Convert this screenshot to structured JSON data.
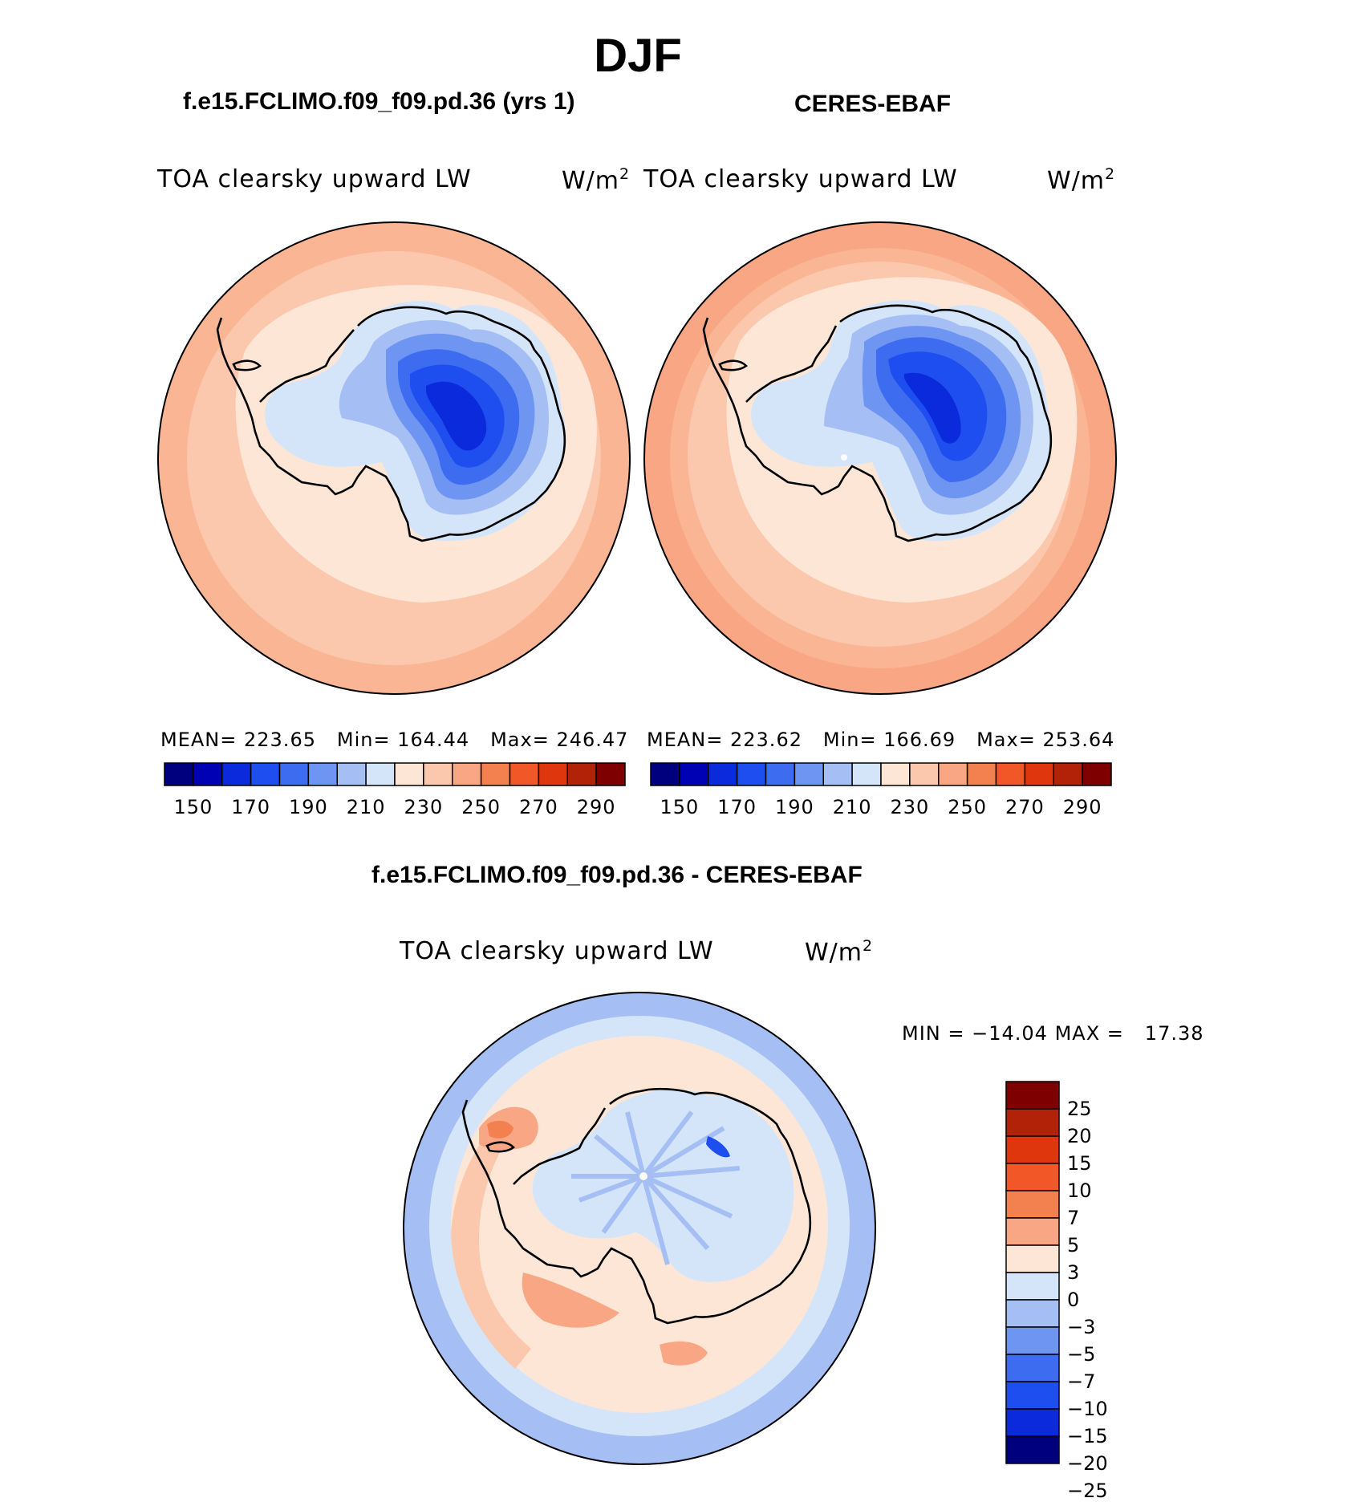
{
  "title": "DJF",
  "panels": [
    {
      "case_title": "f.e15.FCLIMO.f09_f09.pd.36 (yrs 1)",
      "variable": "TOA clearsky upward LW",
      "units": "W/m",
      "units_exp": "2",
      "mean_label": "MEAN=",
      "mean_value": "223.65",
      "min_label": "Min=",
      "min_value": "164.44",
      "max_label": "Max=",
      "max_value": "246.47"
    },
    {
      "case_title": "CERES-EBAF",
      "variable": "TOA clearsky upward LW",
      "units": "W/m",
      "units_exp": "2",
      "mean_label": "MEAN=",
      "mean_value": "223.62",
      "min_label": "Min=",
      "min_value": "166.69",
      "max_label": "Max=",
      "max_value": "253.64"
    }
  ],
  "colorbar_top": {
    "colors": [
      "#00007f",
      "#0000b4",
      "#0a2adb",
      "#1e4df0",
      "#3d6cf0",
      "#6e95f2",
      "#a5bff5",
      "#d5e5f9",
      "#fde6d6",
      "#fbc8ad",
      "#f8a683",
      "#f3804f",
      "#f25727",
      "#df360e",
      "#b22208",
      "#7f0000"
    ],
    "tick_labels": [
      "150",
      "170",
      "190",
      "210",
      "230",
      "250",
      "270",
      "290"
    ]
  },
  "diff_panel": {
    "title": "f.e15.FCLIMO.f09_f09.pd.36 - CERES-EBAF",
    "variable": "TOA clearsky upward LW",
    "units": "W/m",
    "units_exp": "2",
    "min_label": "MIN =",
    "min_value": "−14.04",
    "max_label": "MAX =",
    "max_value": "17.38"
  },
  "colorbar_diff": {
    "colors": [
      "#7f0000",
      "#b22208",
      "#df360e",
      "#f25727",
      "#f3804f",
      "#f8a683",
      "#fde6d6",
      "#d5e5f9",
      "#a5bff5",
      "#6e95f2",
      "#3d6cf0",
      "#1e4df0",
      "#0a2adb",
      "#00007f"
    ],
    "tick_labels": [
      "25",
      "20",
      "15",
      "10",
      "7",
      "5",
      "3",
      "0",
      "−3",
      "−5",
      "−7",
      "−10",
      "−15",
      "−20",
      "−25"
    ]
  }
}
